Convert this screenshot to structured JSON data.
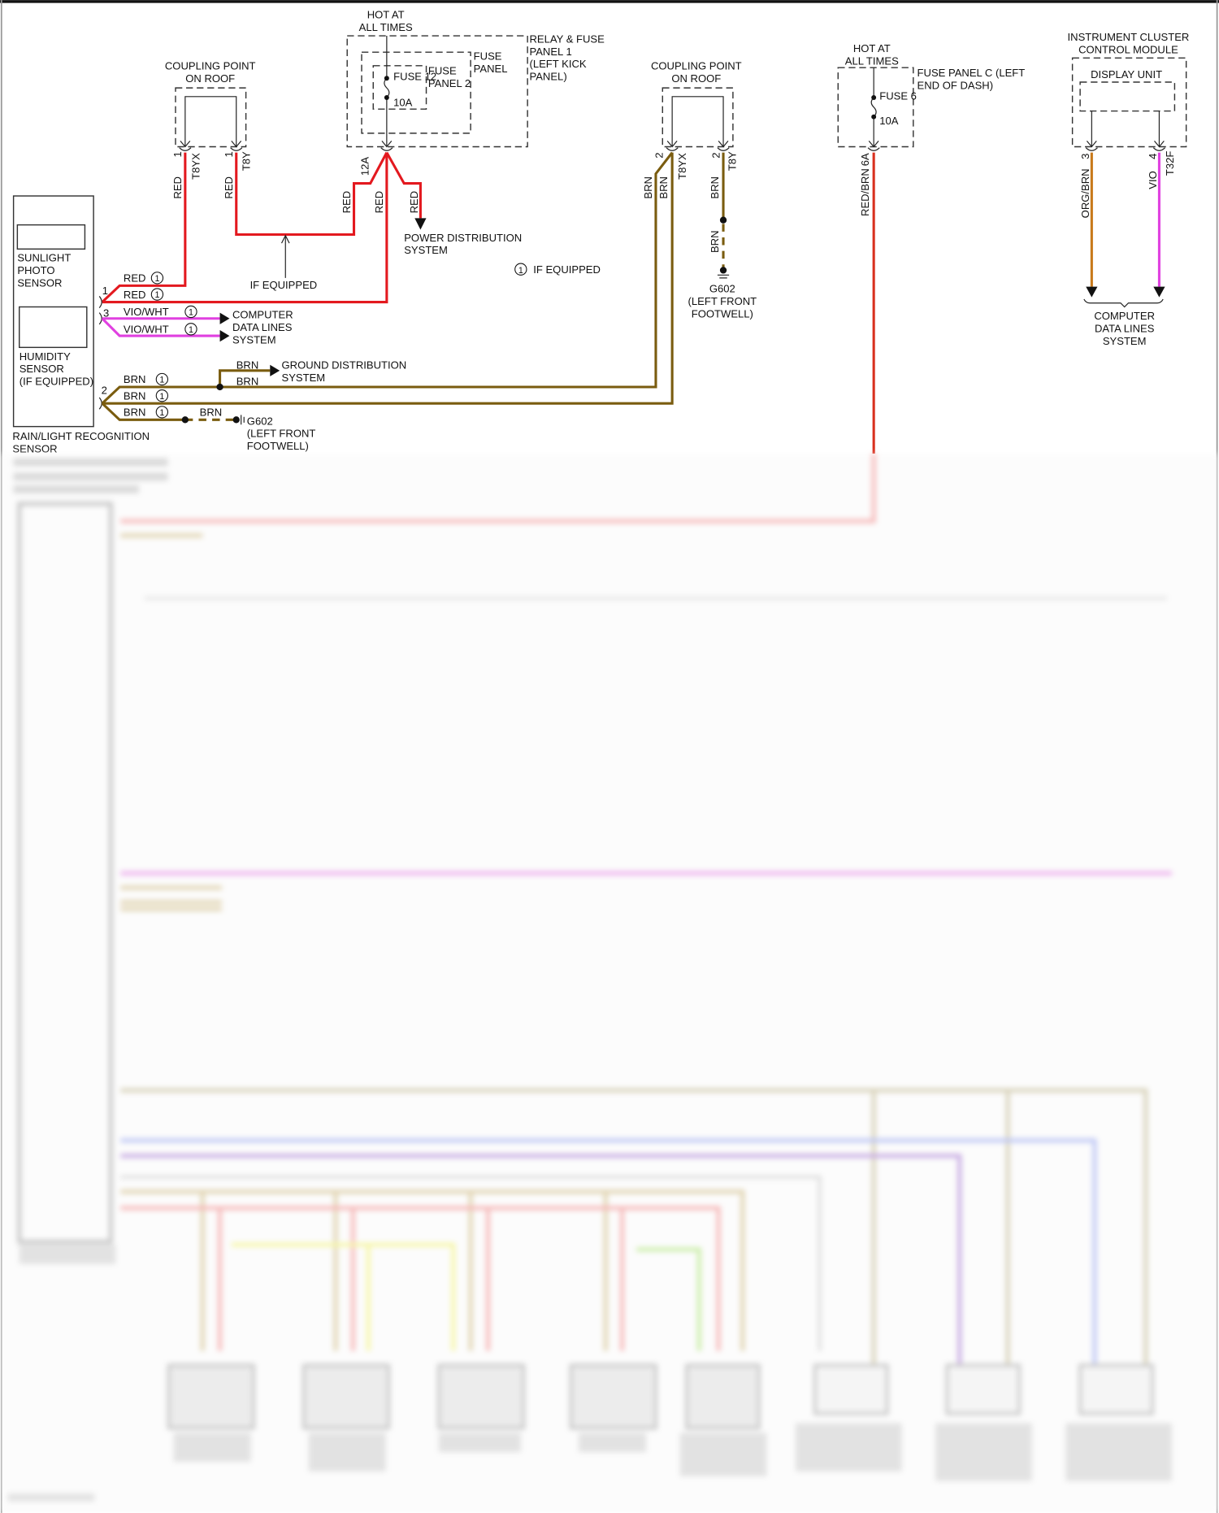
{
  "relay_fuse_panel": {
    "hot": [
      "HOT AT",
      "ALL TIMES"
    ],
    "panel1": [
      "RELAY & FUSE",
      "PANEL 1",
      "(LEFT KICK",
      "PANEL)"
    ],
    "fuse_panel": [
      "FUSE",
      "PANEL"
    ],
    "fuse_panel2": [
      "FUSE",
      "PANEL 2"
    ],
    "fuse": "FUSE 12",
    "rating": "10A",
    "terminal": "12A"
  },
  "coupling_left": {
    "title": [
      "COUPLING POINT",
      "ON ROOF"
    ],
    "pin_a": "1",
    "conn_a": "T8YX",
    "pin_b": "1",
    "conn_b": "T8Y"
  },
  "coupling_right": {
    "title": [
      "COUPLING POINT",
      "ON ROOF"
    ],
    "pin_a": "2",
    "conn_a": "T8YX",
    "pin_b": "2",
    "conn_b": "T8Y"
  },
  "fuse_panel_c": {
    "hot": [
      "HOT AT",
      "ALL TIMES"
    ],
    "title": [
      "FUSE PANEL C (LEFT",
      "END OF DASH)"
    ],
    "fuse": "FUSE 6",
    "rating": "10A",
    "terminal": "6A",
    "wire": "RED/BRN"
  },
  "instrument_cluster": {
    "title": [
      "INSTRUMENT CLUSTER",
      "CONTROL MODULE"
    ],
    "display_unit": "DISPLAY UNIT",
    "pin_3": "3",
    "pin_4": "4",
    "connector": "T32F",
    "wire_3": "ORG/BRN",
    "wire_4": "VIO",
    "destination": [
      "COMPUTER",
      "DATA LINES",
      "SYSTEM"
    ]
  },
  "sensor": {
    "sunlight": [
      "SUNLIGHT",
      "PHOTO",
      "SENSOR"
    ],
    "humidity": [
      "HUMIDITY",
      "SENSOR",
      "(IF EQUIPPED)"
    ],
    "title": [
      "RAIN/LIGHT RECOGNITION",
      "SENSOR"
    ],
    "pin_1": "1",
    "pin_3": "3",
    "pin_2": "2"
  },
  "wires": {
    "red": "RED",
    "brn": "BRN",
    "vio_wht": "VIO/WHT",
    "circle": "1"
  },
  "destinations": {
    "power": [
      "POWER DISTRIBUTION",
      "SYSTEM"
    ],
    "data": [
      "COMPUTER",
      "DATA LINES",
      "SYSTEM"
    ],
    "ground_dist": [
      "GROUND DISTRIBUTION",
      "SYSTEM"
    ],
    "ground_left": [
      "G602",
      "(LEFT FRONT",
      "FOOTWELL)"
    ],
    "ground_right": [
      "G602",
      "(LEFT FRONT",
      "FOOTWELL)"
    ]
  },
  "notes": {
    "if_equipped_arrow": "IF EQUIPPED",
    "legend_circle": "1",
    "legend_text": "IF EQUIPPED"
  },
  "colors": {
    "red": "#e3191f",
    "brown": "#7a5c0f",
    "violet": "#e040e0",
    "orange": "#c8791a"
  }
}
